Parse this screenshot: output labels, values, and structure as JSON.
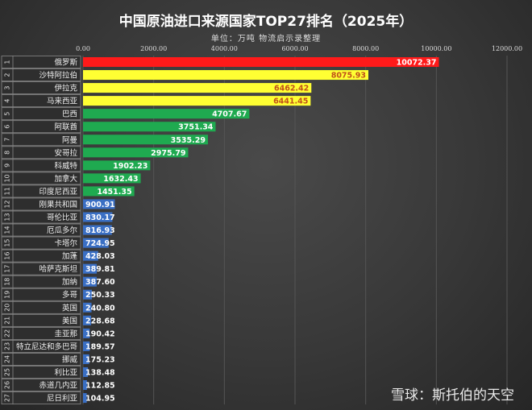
{
  "chart_data": {
    "type": "bar",
    "orientation": "horizontal",
    "title": "中国原油进口来源国家TOP27排名（2025年）",
    "subtitle": "单位：万吨   物流启示录整理",
    "xlim": [
      0,
      12000
    ],
    "xticks": [
      "0.00",
      "2000.00",
      "4000.00",
      "6000.00",
      "8000.00",
      "10000.00",
      "12000.00"
    ],
    "grid": true,
    "ranks": [
      1,
      2,
      3,
      4,
      5,
      6,
      7,
      8,
      9,
      10,
      11,
      12,
      13,
      14,
      15,
      16,
      17,
      18,
      19,
      20,
      21,
      22,
      23,
      24,
      25,
      26,
      27
    ],
    "categories": [
      "俄罗斯",
      "沙特阿拉伯",
      "伊拉克",
      "马来西亚",
      "巴西",
      "阿联酋",
      "阿曼",
      "安哥拉",
      "科威特",
      "加拿大",
      "印度尼西亚",
      "刚果共和国",
      "哥伦比亚",
      "厄瓜多尔",
      "卡塔尔",
      "加蓬",
      "哈萨克斯坦",
      "加纳",
      "多哥",
      "英国",
      "美国",
      "圭亚那",
      "特立尼达和多巴哥",
      "挪威",
      "利比亚",
      "赤道几内亚",
      "尼日利亚"
    ],
    "values": [
      10072.37,
      8075.93,
      6462.42,
      6441.45,
      4707.67,
      3751.34,
      3535.29,
      2975.79,
      1902.23,
      1632.43,
      1451.35,
      900.91,
      830.17,
      816.93,
      724.95,
      428.03,
      389.81,
      387.6,
      250.33,
      240.8,
      228.68,
      190.42,
      189.57,
      175.23,
      138.48,
      112.85,
      104.95
    ],
    "value_labels": [
      "10072.37",
      "8075.93",
      "6462.42",
      "6441.45",
      "4707.67",
      "3751.34",
      "3535.29",
      "2975.79",
      "1902.23",
      "1632.43",
      "1451.35",
      "900.91",
      "830.17",
      "816.93",
      "724.95",
      "428.03",
      "389.81",
      "387.60",
      "250.33",
      "240.80",
      "228.68",
      "190.42",
      "189.57",
      "175.23",
      "138.48",
      "112.85",
      "104.95"
    ],
    "colors": {
      "tier1": "#ff1a1a",
      "tier2": "#ffff33",
      "tier3": "#1faa50",
      "tier4": "#3a6fc4",
      "tier2_label": "#c0501a"
    },
    "tiers": [
      1,
      2,
      2,
      2,
      3,
      3,
      3,
      3,
      3,
      3,
      3,
      4,
      4,
      4,
      4,
      4,
      4,
      4,
      4,
      4,
      4,
      4,
      4,
      4,
      4,
      4,
      4
    ]
  },
  "watermark": "雪球：斯托伯的天空"
}
